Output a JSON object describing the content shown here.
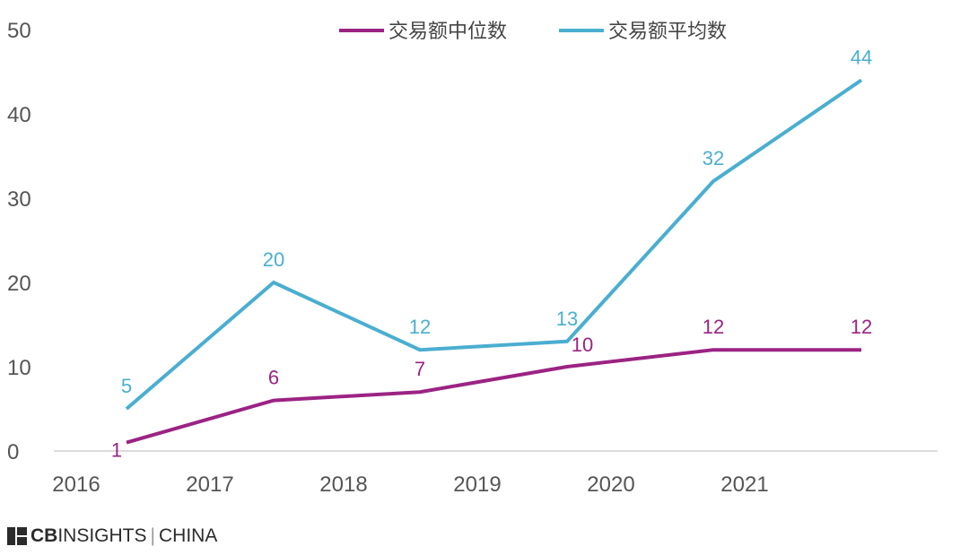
{
  "chart_data": {
    "type": "line",
    "categories": [
      "2016",
      "2017",
      "2018",
      "2019",
      "2020",
      "2021"
    ],
    "ylim": [
      0,
      50
    ],
    "yticks": [
      0,
      10,
      20,
      30,
      40,
      50
    ],
    "grid": false,
    "legend_position": "top-center",
    "series": [
      {
        "name": "交易额中位数",
        "color": "#9b2383",
        "values": [
          1,
          6,
          7,
          10,
          12,
          12
        ],
        "labels": [
          "1",
          "6",
          "7",
          "10",
          "12",
          "12"
        ]
      },
      {
        "name": "交易额平均数",
        "color": "#4aaed0",
        "values": [
          5,
          20,
          12,
          13,
          32,
          44
        ],
        "labels": [
          "5",
          "20",
          "12",
          "13",
          "32",
          "44"
        ]
      }
    ]
  },
  "footer": {
    "brand_bold": "CB",
    "brand_rest": "INSIGHTS",
    "separator": "|",
    "region": "CHINA"
  }
}
